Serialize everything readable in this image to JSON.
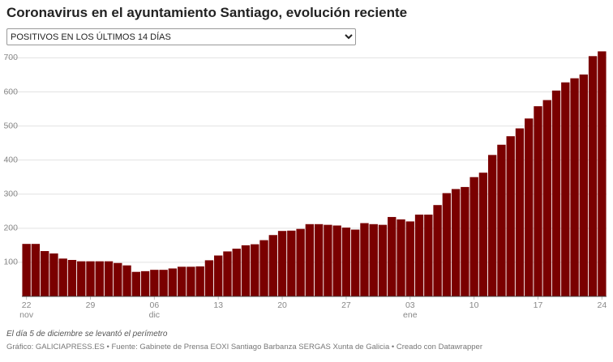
{
  "chart_data": {
    "type": "bar",
    "title": "Coronavirus en el ayuntamiento Santiago, evolución reciente",
    "dropdown": {
      "selected": "POSITIVOS EN LOS ÚLTIMOS 14 DÍAS"
    },
    "categories": [
      "22",
      null,
      null,
      null,
      null,
      null,
      null,
      "29",
      null,
      null,
      null,
      null,
      null,
      null,
      "06",
      null,
      null,
      null,
      null,
      null,
      null,
      "13",
      null,
      null,
      null,
      null,
      null,
      null,
      "20",
      null,
      null,
      null,
      null,
      null,
      null,
      "27",
      null,
      null,
      null,
      null,
      null,
      null,
      "03",
      null,
      null,
      null,
      null,
      null,
      null,
      "10",
      null,
      null,
      null,
      null,
      null,
      null,
      "17",
      null,
      null,
      null,
      null,
      null,
      null,
      "24"
    ],
    "category_months": [
      "nov",
      null,
      null,
      null,
      null,
      null,
      null,
      null,
      null,
      null,
      null,
      null,
      null,
      null,
      "dic",
      null,
      null,
      null,
      null,
      null,
      null,
      null,
      null,
      null,
      null,
      null,
      null,
      null,
      null,
      null,
      null,
      null,
      null,
      null,
      null,
      null,
      null,
      null,
      null,
      null,
      null,
      null,
      "ene",
      null,
      null,
      null,
      null,
      null,
      null,
      null,
      null,
      null,
      null,
      null,
      null,
      null,
      null,
      null,
      null,
      null,
      null,
      null,
      null,
      null
    ],
    "values": [
      154,
      154,
      133,
      126,
      111,
      107,
      103,
      103,
      103,
      103,
      98,
      91,
      72,
      74,
      78,
      78,
      82,
      87,
      87,
      88,
      106,
      120,
      132,
      140,
      150,
      153,
      165,
      180,
      192,
      193,
      198,
      212,
      212,
      210,
      208,
      202,
      196,
      215,
      212,
      210,
      233,
      226,
      220,
      240,
      240,
      268,
      303,
      315,
      321,
      350,
      363,
      415,
      445,
      470,
      493,
      522,
      558,
      576,
      604,
      628,
      640,
      651,
      705,
      719
    ],
    "color": "#7a0000",
    "ylim": [
      0,
      720
    ],
    "yticks": [
      100,
      200,
      300,
      400,
      500,
      600,
      700
    ],
    "grid": true,
    "note": "El día 5 de diciembre se levantó el perímetro",
    "footer": "Gráfico: GALICIAPRESS.ES • Fuente: Gabinete de Prensa EOXI Santiago Barbanza SERGAS Xunta de Galicia • Creado con Datawrapper"
  }
}
